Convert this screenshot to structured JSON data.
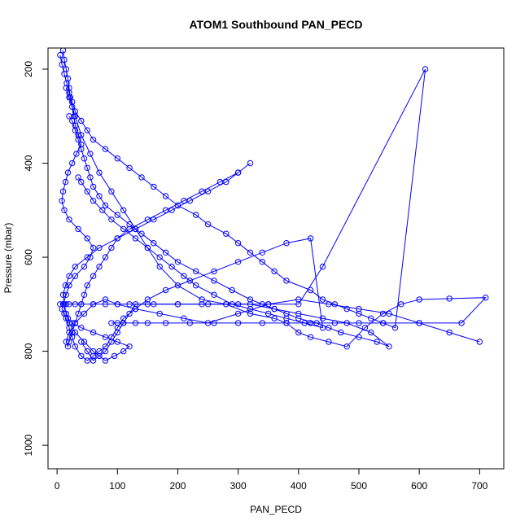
{
  "chart_data": {
    "type": "line",
    "title": "ATOM1 Southbound PAN_PECD",
    "xlabel": "PAN_PECD",
    "ylabel": "Pressure (mbar)",
    "xlim": [
      -15,
      740
    ],
    "ylim": [
      1050,
      155
    ],
    "y_inverted": true,
    "x_ticks": [
      0,
      100,
      200,
      300,
      400,
      500,
      600,
      700
    ],
    "y_ticks": [
      200,
      400,
      600,
      800,
      1000
    ],
    "grid": false,
    "legend": "none",
    "colors": {
      "series": "#0000ff",
      "axis": "#000000"
    },
    "marker": "open-circle",
    "series": [
      {
        "x": [
          10,
          12,
          15,
          18,
          20,
          22,
          25,
          28,
          30,
          35,
          40,
          32,
          25,
          18,
          14,
          10,
          8,
          12,
          20,
          35,
          50,
          60,
          55,
          45,
          30,
          20,
          15,
          10,
          8,
          12,
          18,
          25,
          40,
          60,
          80,
          100,
          120,
          110,
          95,
          80,
          60,
          45,
          30,
          20,
          15,
          12,
          10,
          14,
          20,
          30,
          50,
          70,
          100,
          130,
          160,
          190,
          220,
          250,
          280,
          300,
          320,
          300,
          270,
          240,
          210,
          180,
          150,
          120,
          100,
          90,
          80,
          70,
          60,
          50,
          45,
          40,
          35,
          30,
          25,
          20,
          18,
          15,
          20,
          30,
          45,
          60,
          80,
          100,
          130,
          170,
          210,
          250,
          300,
          350,
          400,
          450,
          500,
          550,
          600,
          650,
          700
        ],
        "y": [
          160,
          180,
          200,
          220,
          240,
          260,
          280,
          300,
          320,
          340,
          360,
          380,
          400,
          420,
          440,
          460,
          480,
          500,
          520,
          540,
          560,
          580,
          600,
          620,
          640,
          660,
          680,
          700,
          710,
          720,
          730,
          740,
          750,
          760,
          770,
          780,
          790,
          800,
          810,
          820,
          800,
          780,
          760,
          740,
          720,
          700,
          680,
          660,
          640,
          620,
          600,
          580,
          560,
          540,
          520,
          500,
          480,
          460,
          440,
          420,
          400,
          420,
          440,
          460,
          480,
          500,
          520,
          540,
          560,
          580,
          600,
          620,
          640,
          660,
          680,
          700,
          720,
          740,
          760,
          780,
          790,
          780,
          760,
          740,
          720,
          700,
          690,
          700,
          710,
          720,
          730,
          740,
          720,
          700,
          690,
          700,
          710,
          720,
          740,
          760,
          780
        ]
      },
      {
        "x": [
          5,
          8,
          12,
          16,
          20,
          25,
          30,
          40,
          50,
          60,
          80,
          100,
          120,
          140,
          160,
          180,
          200,
          230,
          250,
          280,
          300,
          320,
          340,
          360,
          380,
          420,
          440,
          460,
          480,
          500,
          520,
          540,
          560,
          610,
          440,
          400,
          350,
          300,
          250,
          200,
          150,
          120,
          100,
          80,
          60,
          40,
          30,
          20,
          15,
          10,
          5
        ],
        "y": [
          170,
          190,
          210,
          230,
          250,
          270,
          290,
          310,
          330,
          350,
          370,
          390,
          410,
          430,
          450,
          470,
          490,
          510,
          530,
          550,
          570,
          590,
          610,
          630,
          650,
          670,
          690,
          700,
          710,
          720,
          730,
          740,
          750,
          200,
          620,
          700,
          700,
          700,
          700,
          700,
          700,
          700,
          700,
          700,
          700,
          700,
          700,
          700,
          700,
          700,
          700
        ]
      },
      {
        "x": [
          15,
          20,
          30,
          40,
          55,
          70,
          90,
          110,
          130,
          150,
          170,
          200,
          240,
          280,
          320,
          360,
          380,
          400,
          420,
          450,
          480,
          510,
          540,
          570,
          600,
          650,
          710,
          670,
          600,
          540,
          500,
          460,
          420,
          380,
          340,
          300,
          260,
          220,
          180,
          150,
          130,
          110,
          100,
          90
        ],
        "y": [
          240,
          260,
          300,
          340,
          380,
          420,
          460,
          500,
          540,
          580,
          620,
          660,
          690,
          700,
          720,
          730,
          740,
          760,
          770,
          780,
          790,
          750,
          720,
          700,
          690,
          688,
          686,
          740,
          740,
          740,
          740,
          740,
          740,
          740,
          740,
          740,
          740,
          740,
          740,
          740,
          740,
          740,
          740,
          740
        ]
      },
      {
        "x": [
          20,
          25,
          30,
          35,
          40,
          45,
          50,
          55,
          60,
          70,
          80,
          100,
          120,
          140,
          160,
          180,
          200,
          230,
          260,
          290,
          320,
          340,
          360,
          380,
          400,
          430,
          450,
          470,
          500,
          530,
          550,
          520,
          480,
          440,
          400,
          360,
          320,
          280,
          240,
          200,
          160,
          130,
          120,
          110,
          100,
          90,
          80,
          70,
          60,
          50,
          40
        ],
        "y": [
          300,
          310,
          330,
          350,
          370,
          390,
          410,
          430,
          450,
          470,
          490,
          510,
          530,
          550,
          570,
          590,
          610,
          630,
          650,
          670,
          690,
          700,
          710,
          720,
          730,
          740,
          750,
          760,
          770,
          780,
          790,
          760,
          740,
          730,
          720,
          710,
          700,
          700,
          700,
          700,
          700,
          700,
          720,
          740,
          760,
          780,
          800,
          810,
          820,
          800,
          780
        ]
      },
      {
        "x": [
          35,
          40,
          50,
          60,
          75,
          90,
          110,
          130,
          150,
          170,
          190,
          210,
          230,
          260,
          290,
          320,
          350,
          380,
          410,
          440,
          420,
          380,
          340,
          300,
          260,
          220,
          180,
          150,
          130,
          110,
          100,
          90,
          80,
          70,
          60,
          50,
          40,
          30,
          25,
          20,
          15
        ],
        "y": [
          430,
          440,
          460,
          480,
          500,
          520,
          540,
          560,
          580,
          600,
          620,
          640,
          660,
          680,
          700,
          710,
          720,
          730,
          740,
          750,
          560,
          570,
          590,
          610,
          630,
          650,
          670,
          690,
          710,
          730,
          750,
          770,
          790,
          800,
          810,
          820,
          810,
          790,
          770,
          750,
          730
        ]
      }
    ]
  }
}
